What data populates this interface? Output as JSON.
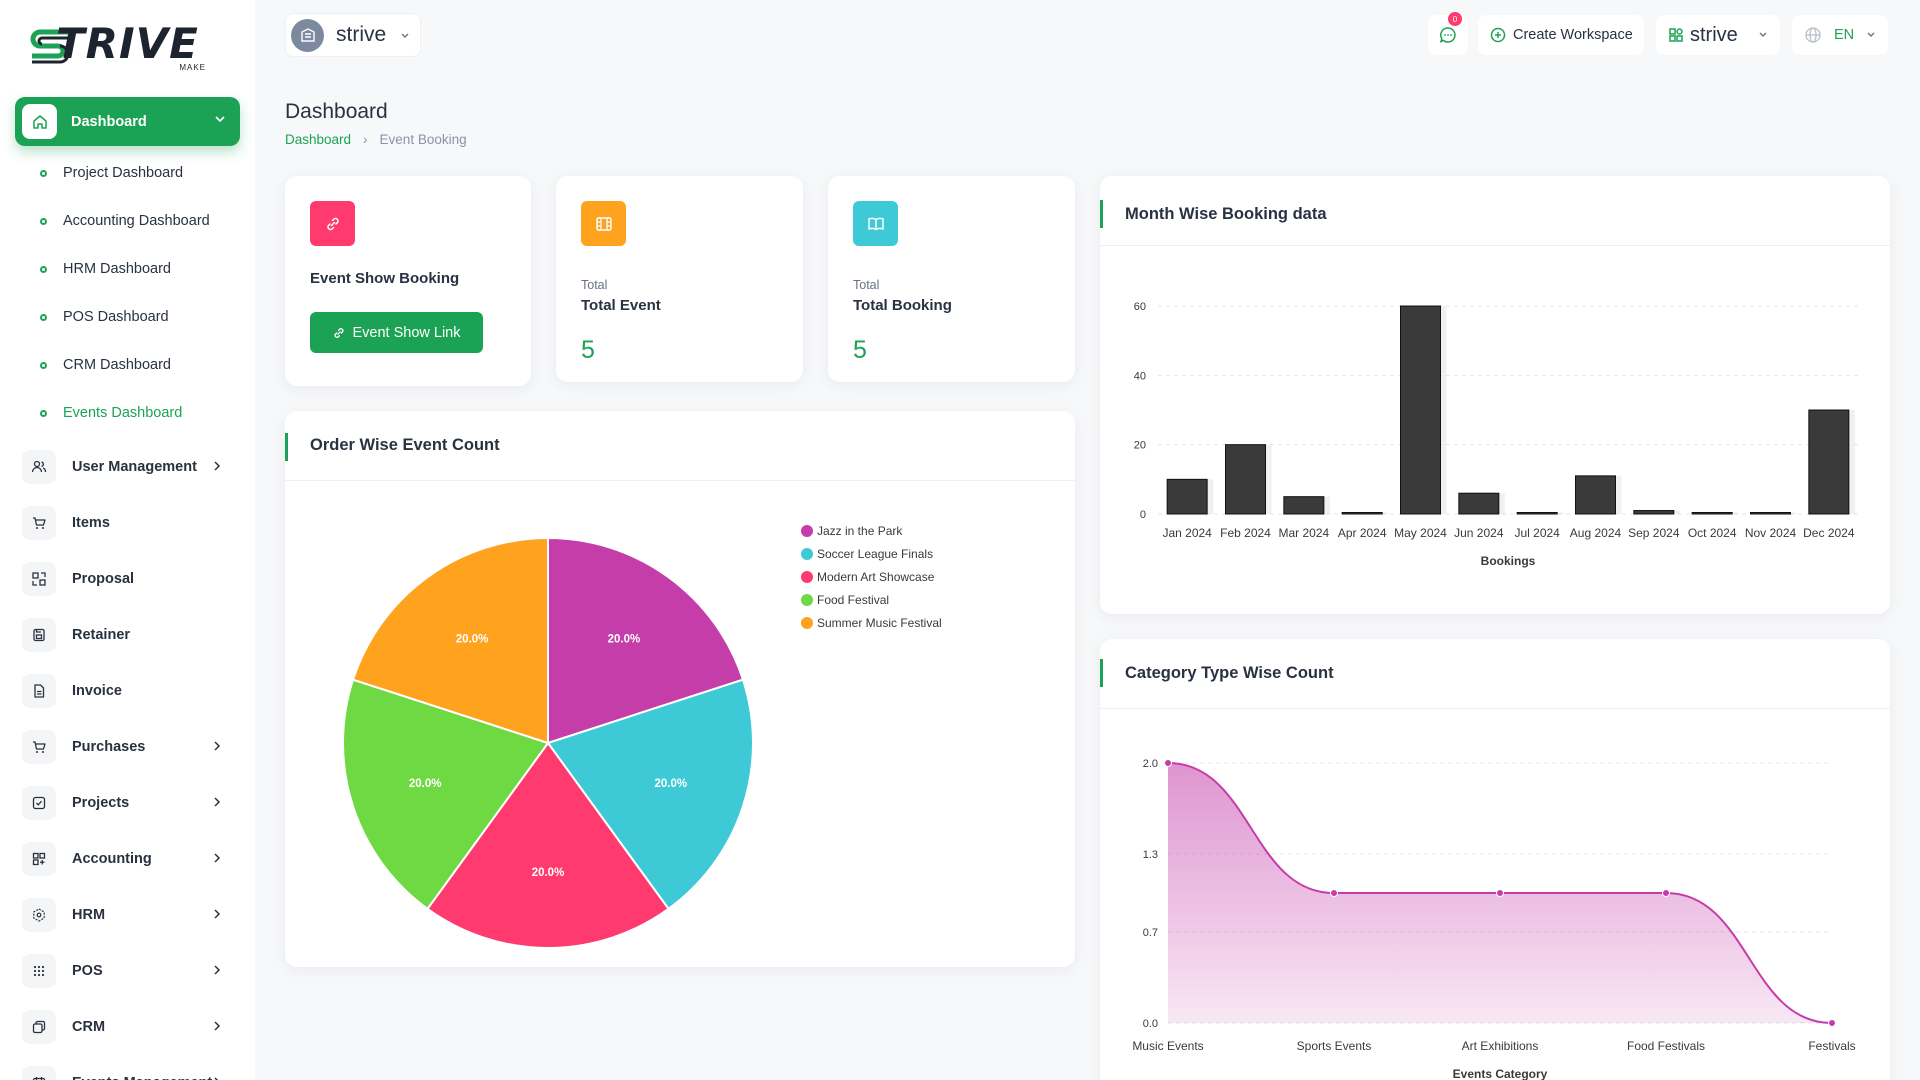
{
  "brand": {
    "logo_text": "TRIVE",
    "logo_sub": "MAKE"
  },
  "sidebar": {
    "active": {
      "label": "Dashboard"
    },
    "sub_items": [
      {
        "label": "Project Dashboard"
      },
      {
        "label": "Accounting Dashboard"
      },
      {
        "label": "HRM Dashboard"
      },
      {
        "label": "POS Dashboard"
      },
      {
        "label": "CRM Dashboard"
      },
      {
        "label": "Events Dashboard"
      }
    ],
    "items": [
      {
        "label": "User Management",
        "icon": "users-icon",
        "chevron": true
      },
      {
        "label": "Items",
        "icon": "cart-icon",
        "chevron": false
      },
      {
        "label": "Proposal",
        "icon": "proposal-icon",
        "chevron": false
      },
      {
        "label": "Retainer",
        "icon": "save-icon",
        "chevron": false
      },
      {
        "label": "Invoice",
        "icon": "file-icon",
        "chevron": false
      },
      {
        "label": "Purchases",
        "icon": "cart-icon",
        "chevron": true
      },
      {
        "label": "Projects",
        "icon": "checkbox-icon",
        "chevron": true
      },
      {
        "label": "Accounting",
        "icon": "grid-plus-icon",
        "chevron": true
      },
      {
        "label": "HRM",
        "icon": "hexagon-icon",
        "chevron": true
      },
      {
        "label": "POS",
        "icon": "dots-grid-icon",
        "chevron": true
      },
      {
        "label": "CRM",
        "icon": "layers-icon",
        "chevron": true
      },
      {
        "label": "Events Management",
        "icon": "calendar-icon",
        "chevron": true
      }
    ]
  },
  "header": {
    "workspace": "strive",
    "notifications_count": "0",
    "create_workspace": "Create Workspace",
    "workspace_menu": "strive",
    "language": "EN"
  },
  "page": {
    "title": "Dashboard",
    "breadcrumb_home": "Dashboard",
    "breadcrumb_current": "Event Booking"
  },
  "stats": {
    "show_booking": {
      "label": "Event Show Booking",
      "button": "Event Show Link"
    },
    "total_event": {
      "small": "Total",
      "label": "Total Event",
      "value": "5"
    },
    "total_booking": {
      "small": "Total",
      "label": "Total Booking",
      "value": "5"
    }
  },
  "colors": {
    "accent": "#1ca254",
    "pink": "#ff3a6e",
    "orange": "#ffa21d",
    "cyan": "#3ec9d6",
    "bar": "#3a3a3a",
    "area": "#c53da9"
  },
  "charts": {
    "pie_title": "Order Wise Event Count",
    "bar_title": "Month Wise Booking data",
    "area_title": "Category Type Wise Count"
  },
  "chart_data": [
    {
      "type": "pie",
      "title": "Order Wise Event Count",
      "labels": [
        "Jazz in the Park",
        "Soccer League Finals",
        "Modern Art Showcase",
        "Food Festival",
        "Summer Music Festival"
      ],
      "values": [
        20,
        20,
        20,
        20,
        20
      ],
      "value_labels": [
        "20.0%",
        "20.0%",
        "20.0%",
        "20.0%",
        "20.0%"
      ],
      "colors": [
        "#c53da9",
        "#3ec9d6",
        "#ff3a6e",
        "#6fd943",
        "#ffa21d"
      ],
      "legend": "right"
    },
    {
      "type": "bar",
      "title": "Month Wise Booking data",
      "categories": [
        "Jan 2024",
        "Feb 2024",
        "Mar 2024",
        "Apr 2024",
        "May 2024",
        "Jun 2024",
        "Jul 2024",
        "Aug 2024",
        "Sep 2024",
        "Oct 2024",
        "Nov 2024",
        "Dec 2024"
      ],
      "values": [
        10,
        20,
        5,
        0,
        60,
        6,
        0,
        11,
        1,
        0,
        0,
        30
      ],
      "xlabel": "Bookings",
      "ylabel": "",
      "ylim": [
        0,
        60
      ],
      "yticks": [
        0,
        20,
        40,
        60
      ],
      "grid": true
    },
    {
      "type": "area",
      "title": "Category Type Wise Count",
      "categories": [
        "Music Events",
        "Sports Events",
        "Art Exhibitions",
        "Food Festivals",
        "Festivals"
      ],
      "values": [
        2,
        1,
        1,
        1,
        0
      ],
      "xlabel": "Events Category",
      "ylabel": "",
      "ylim": [
        0,
        2
      ],
      "yticks": [
        "0.0",
        "0.7",
        "1.3",
        "2.0"
      ],
      "grid": true
    }
  ]
}
